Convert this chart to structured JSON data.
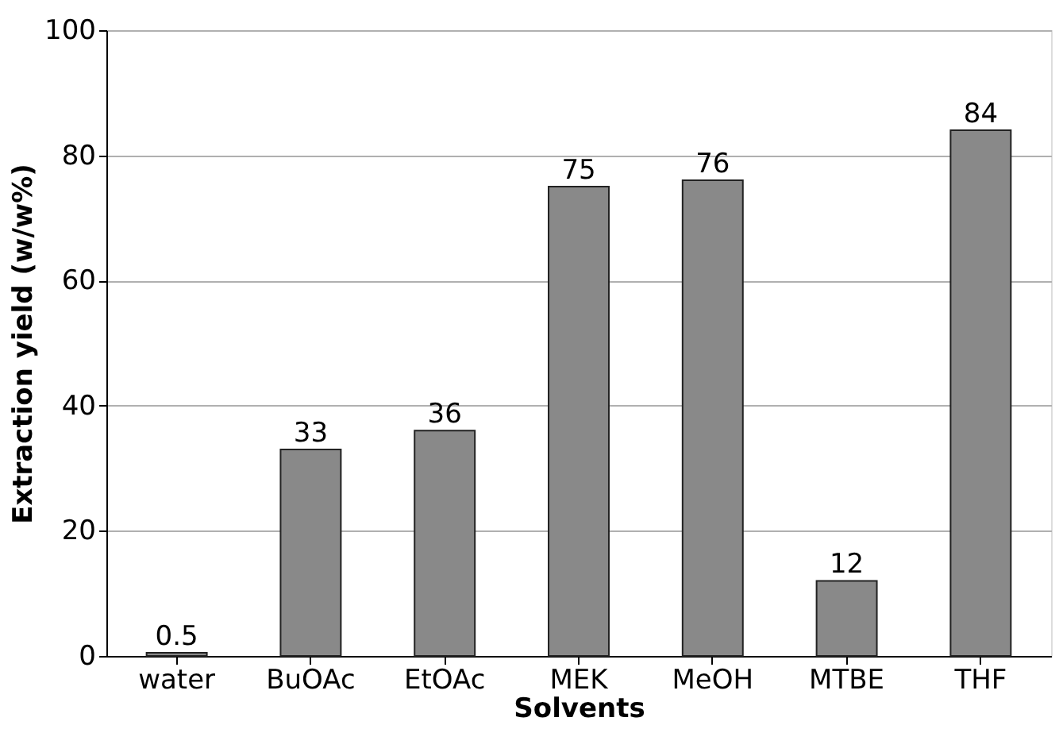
{
  "chart_data": {
    "type": "bar",
    "xlabel": "Solvents",
    "ylabel": "Extraction yield (w/w%)",
    "categories": [
      "water",
      "BuOAc",
      "EtOAc",
      "MEK",
      "MeOH",
      "MTBE",
      "THF"
    ],
    "values": [
      0.5,
      33,
      36,
      75,
      76,
      12,
      84
    ],
    "color": "#898989",
    "ylim": [
      0,
      100
    ],
    "yticks": [
      0,
      20,
      40,
      60,
      80,
      100
    ],
    "grid": "y",
    "data_labels": true
  }
}
